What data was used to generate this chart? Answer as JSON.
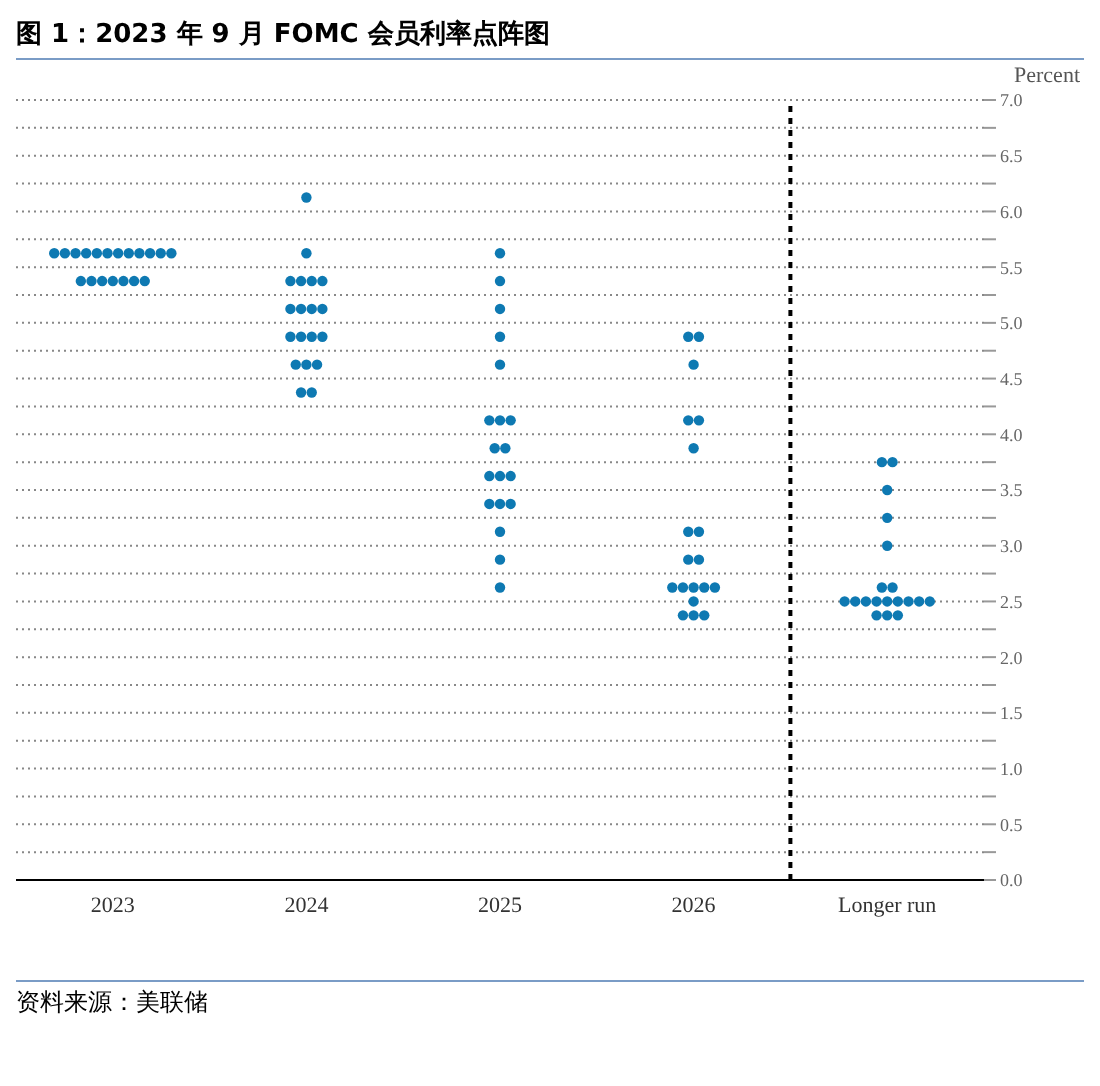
{
  "chart_data": {
    "type": "scatter",
    "title": "图 1：2023 年 9 月 FOMC 会员利率点阵图",
    "ylabel": "Percent",
    "annotations": [
      "资料来源：美联储"
    ],
    "categories": [
      "2023",
      "2024",
      "2025",
      "2026",
      "Longer run"
    ],
    "marker": "circle",
    "grid": "y",
    "ylim": [
      0,
      7
    ],
    "ref_lines": [
      {
        "axis": "x",
        "value": "Longer run",
        "line_style": "dashed",
        "color": "#000000"
      }
    ],
    "yticks": [
      {
        "value": 0,
        "label": "0.0"
      },
      {
        "value": 0.25,
        "label": null
      },
      {
        "value": 0.5,
        "label": "0.5"
      },
      {
        "value": 0.75,
        "label": null
      },
      {
        "value": 1,
        "label": "1.0"
      },
      {
        "value": 1.25,
        "label": null
      },
      {
        "value": 1.5,
        "label": "1.5"
      },
      {
        "value": 1.75,
        "label": null
      },
      {
        "value": 2,
        "label": "2.0"
      },
      {
        "value": 2.25,
        "label": null
      },
      {
        "value": 2.5,
        "label": "2.5"
      },
      {
        "value": 2.75,
        "label": null
      },
      {
        "value": 3,
        "label": "3.0"
      },
      {
        "value": 3.25,
        "label": null
      },
      {
        "value": 3.5,
        "label": "3.5"
      },
      {
        "value": 3.75,
        "label": null
      },
      {
        "value": 4,
        "label": "4.0"
      },
      {
        "value": 4.25,
        "label": null
      },
      {
        "value": 4.5,
        "label": "4.5"
      },
      {
        "value": 4.75,
        "label": null
      },
      {
        "value": 5,
        "label": "5.0"
      },
      {
        "value": 5.25,
        "label": null
      },
      {
        "value": 5.5,
        "label": "5.5"
      },
      {
        "value": 5.75,
        "label": null
      },
      {
        "value": 6,
        "label": "6.0"
      },
      {
        "value": 6.25,
        "label": null
      },
      {
        "value": 6.5,
        "label": "6.5"
      },
      {
        "value": 6.75,
        "label": null
      },
      {
        "value": 7,
        "label": "7.0"
      }
    ],
    "series": [
      {
        "color": "#0e79b2",
        "values": [
          5.625,
          6.125,
          5.625,
          4.875,
          3.75
        ]
      },
      {
        "color": "#0e79b2",
        "values": [
          5.625,
          5.625,
          5.375,
          4.875,
          3.75
        ]
      },
      {
        "color": "#0e79b2",
        "values": [
          5.625,
          5.375,
          5.125,
          4.625,
          3.5
        ]
      },
      {
        "color": "#0e79b2",
        "values": [
          5.625,
          5.375,
          4.875,
          4.125,
          3.25
        ]
      },
      {
        "color": "#0e79b2",
        "values": [
          5.625,
          5.375,
          4.625,
          4.125,
          3.0
        ]
      },
      {
        "color": "#0e79b2",
        "values": [
          5.625,
          5.375,
          4.125,
          3.875,
          2.625
        ]
      },
      {
        "color": "#0e79b2",
        "values": [
          5.625,
          5.125,
          4.125,
          3.125,
          2.625
        ]
      },
      {
        "color": "#0e79b2",
        "values": [
          5.625,
          5.125,
          4.125,
          3.125,
          2.5
        ]
      },
      {
        "color": "#0e79b2",
        "values": [
          5.625,
          5.125,
          3.875,
          2.875,
          2.5
        ]
      },
      {
        "color": "#0e79b2",
        "values": [
          5.625,
          5.125,
          3.875,
          2.875,
          2.5
        ]
      },
      {
        "color": "#0e79b2",
        "values": [
          5.625,
          4.875,
          3.625,
          2.625,
          2.5
        ]
      },
      {
        "color": "#0e79b2",
        "values": [
          5.625,
          4.875,
          3.625,
          2.625,
          2.5
        ]
      },
      {
        "color": "#0e79b2",
        "values": [
          5.375,
          4.875,
          3.625,
          2.625,
          2.5
        ]
      },
      {
        "color": "#0e79b2",
        "values": [
          5.375,
          4.875,
          3.375,
          2.625,
          2.5
        ]
      },
      {
        "color": "#0e79b2",
        "values": [
          5.375,
          4.625,
          3.375,
          2.625,
          2.5
        ]
      },
      {
        "color": "#0e79b2",
        "values": [
          5.375,
          4.625,
          3.375,
          2.5,
          2.5
        ]
      },
      {
        "color": "#0e79b2",
        "values": [
          5.375,
          4.625,
          3.125,
          2.375,
          2.375
        ]
      },
      {
        "color": "#0e79b2",
        "values": [
          5.375,
          4.375,
          2.875,
          2.375,
          2.375
        ]
      },
      {
        "color": "#0e79b2",
        "values": [
          5.375,
          4.375,
          2.625,
          2.375,
          2.375
        ]
      }
    ]
  }
}
